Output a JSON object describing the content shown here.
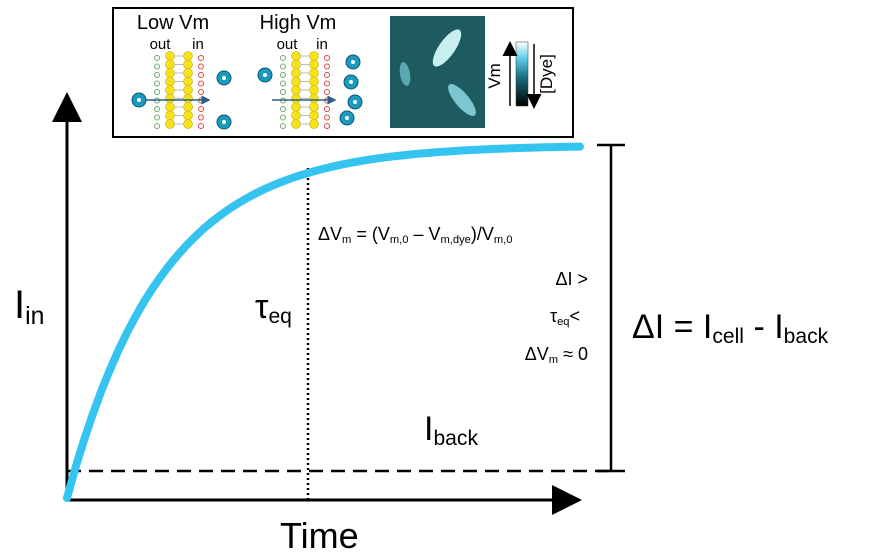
{
  "inset": {
    "panels": [
      {
        "title": "Low Vm",
        "out": "out",
        "in": "in"
      },
      {
        "title": "High Vm",
        "out": "out",
        "in": "in"
      }
    ],
    "colorbar": {
      "left": "Vm",
      "right": "[Dye]"
    }
  },
  "axes": {
    "y": [
      {
        "text": "I"
      },
      {
        "sub": "in"
      }
    ],
    "x": [
      {
        "text": "Time"
      }
    ]
  },
  "annotations": {
    "tau": [
      {
        "text": "τ"
      },
      {
        "sub": "eq"
      }
    ],
    "background": [
      {
        "text": "I"
      },
      {
        "sub": "back"
      }
    ],
    "equation": [
      {
        "text": "ΔV"
      },
      {
        "sub": "m"
      },
      {
        "text": " = (V"
      },
      {
        "sub": "m,0"
      },
      {
        "text": " – V"
      },
      {
        "sub": "m,dye"
      },
      {
        "text": ")/V"
      },
      {
        "sub": "m,0"
      }
    ],
    "conditions": [
      [
        {
          "text": "ΔI >"
        }
      ],
      [
        {
          "text": "τ"
        },
        {
          "sub": "eq"
        },
        {
          "text": "<"
        }
      ],
      [
        {
          "text": "ΔV"
        },
        {
          "sub": "m"
        },
        {
          "text": " ≈ 0"
        }
      ]
    ],
    "delta": [
      {
        "text": "ΔI = I"
      },
      {
        "sub": "cell"
      },
      {
        "text": " - I"
      },
      {
        "sub": "back"
      }
    ]
  }
}
